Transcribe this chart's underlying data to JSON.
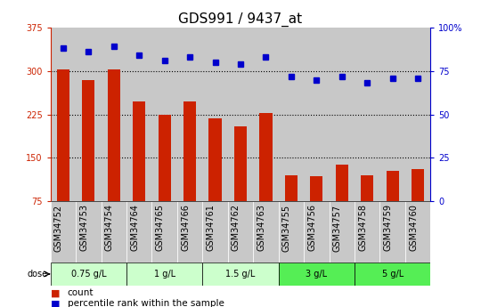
{
  "title": "GDS991 / 9437_at",
  "samples": [
    "GSM34752",
    "GSM34753",
    "GSM34754",
    "GSM34764",
    "GSM34765",
    "GSM34766",
    "GSM34761",
    "GSM34762",
    "GSM34763",
    "GSM34755",
    "GSM34756",
    "GSM34757",
    "GSM34758",
    "GSM34759",
    "GSM34760"
  ],
  "counts": [
    302,
    285,
    303,
    248,
    225,
    247,
    218,
    205,
    227,
    120,
    118,
    138,
    120,
    128,
    130
  ],
  "percentile": [
    88,
    86,
    89,
    84,
    81,
    83,
    80,
    79,
    83,
    72,
    70,
    72,
    68,
    71,
    71
  ],
  "bar_color": "#cc2200",
  "dot_color": "#0000cc",
  "ylim_left": [
    75,
    375
  ],
  "ylim_right": [
    0,
    100
  ],
  "yticks_left": [
    75,
    150,
    225,
    300,
    375
  ],
  "yticks_right": [
    0,
    25,
    50,
    75,
    100
  ],
  "dose_groups": [
    {
      "label": "0.75 g/L",
      "count": 3,
      "color": "#ccffcc"
    },
    {
      "label": "1 g/L",
      "count": 3,
      "color": "#ccffcc"
    },
    {
      "label": "1.5 g/L",
      "count": 3,
      "color": "#ccffcc"
    },
    {
      "label": "3 g/L",
      "count": 3,
      "color": "#55ee55"
    },
    {
      "label": "5 g/L",
      "count": 3,
      "color": "#55ee55"
    }
  ],
  "dose_label": "dose",
  "legend_count_label": "count",
  "legend_percentile_label": "percentile rank within the sample",
  "background_color": "#ffffff",
  "tick_bg_color": "#c8c8c8",
  "grid_color": "#000000",
  "title_fontsize": 11,
  "tick_fontsize": 7,
  "axis_fontsize": 8,
  "hgrid_lines": [
    150,
    225,
    300
  ],
  "right_tick_labels": [
    "0",
    "25",
    "50",
    "75",
    "100%"
  ]
}
